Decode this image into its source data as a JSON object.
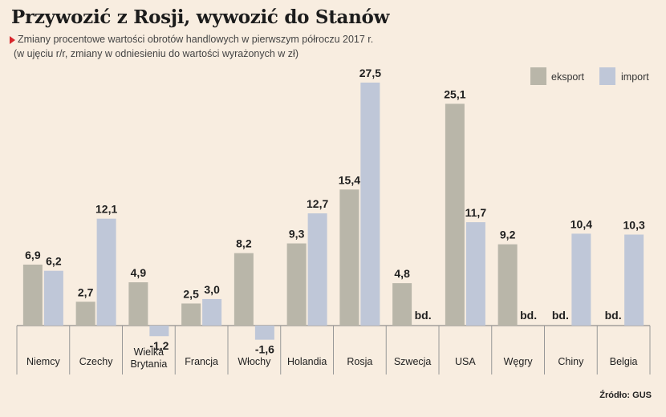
{
  "title": "Przywozić z Rosji, wywozić do Stanów",
  "subtitle": "Zmiany procentowe wartości obrotów handlowych w pierwszym półroczu 2017 r.",
  "note": "(w ujęciu r/r, zmiany w odniesieniu do wartości wyrażonych w zł)",
  "source": "Źródło: GUS",
  "colors": {
    "eksport": "#b9b6a9",
    "import": "#bfc7d8",
    "background": "#f8ede0",
    "marker": "#d8262c"
  },
  "legend": {
    "eksport": "eksport",
    "import": "import"
  },
  "chart_data": {
    "type": "bar",
    "categories": [
      "Niemcy",
      "Czechy",
      "Wielka Brytania",
      "Francja",
      "Włochy",
      "Holandia",
      "Rosja",
      "Szwecja",
      "USA",
      "Węgry",
      "Chiny",
      "Belgia"
    ],
    "category_lines": [
      [
        "Niemcy"
      ],
      [
        "Czechy"
      ],
      [
        "Wielka",
        "Brytania"
      ],
      [
        "Francja"
      ],
      [
        "Włochy"
      ],
      [
        "Holandia"
      ],
      [
        "Rosja"
      ],
      [
        "Szwecja"
      ],
      [
        "USA"
      ],
      [
        "Węgry"
      ],
      [
        "Chiny"
      ],
      [
        "Belgia"
      ]
    ],
    "series": [
      {
        "name": "eksport",
        "values": [
          6.9,
          2.7,
          4.9,
          2.5,
          8.2,
          9.3,
          15.4,
          4.8,
          25.1,
          9.2,
          null,
          null
        ],
        "labels": [
          "6,9",
          "2,7",
          "4,9",
          "2,5",
          "8,2",
          "9,3",
          "15,4",
          "4,8",
          "25,1",
          "9,2",
          "bd.",
          "bd."
        ]
      },
      {
        "name": "import",
        "values": [
          6.2,
          12.1,
          -1.2,
          3.0,
          -1.6,
          12.7,
          27.5,
          null,
          11.7,
          null,
          10.4,
          10.3
        ],
        "labels": [
          "6,2",
          "12,1",
          "-1,2",
          "3,0",
          "-1,6",
          "12,7",
          "27,5",
          "bd.",
          "11,7",
          "bd.",
          "10,4",
          "10,3"
        ]
      }
    ],
    "missing_label": "bd.",
    "legend_position": "top-right",
    "grid": false
  }
}
